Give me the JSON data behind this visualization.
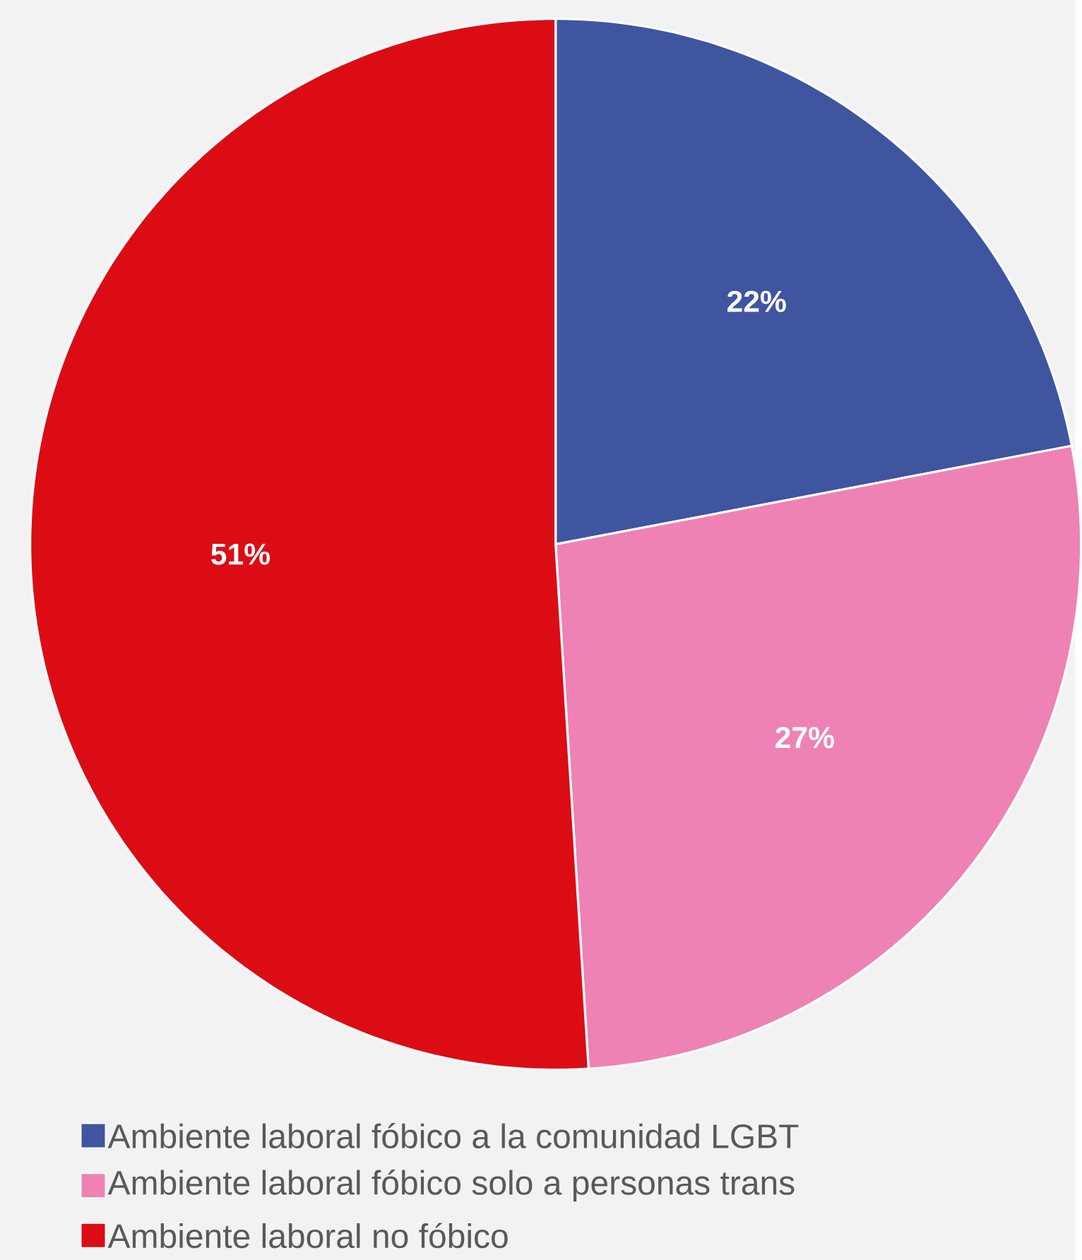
{
  "chart_data": {
    "type": "pie",
    "categories": [
      "Ambiente laboral fóbico a la comunidad LGBT",
      "Ambiente laboral fóbico solo a personas trans",
      "Ambiente laboral no fóbico"
    ],
    "values": [
      22,
      27,
      51
    ],
    "colors": [
      "#3f55a0",
      "#ee82b4",
      "#dc0c14"
    ],
    "value_labels": [
      "22%",
      "27%",
      "51%"
    ],
    "legend": "bottom"
  }
}
